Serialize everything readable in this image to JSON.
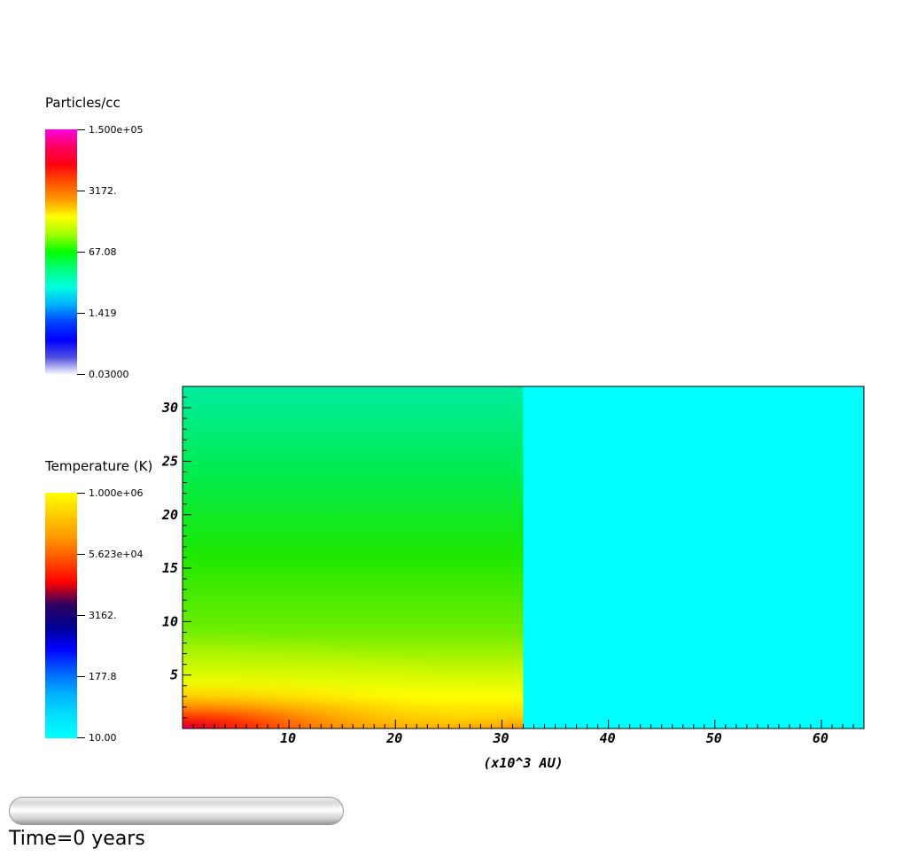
{
  "chart_data": {
    "type": "heatmap",
    "xlabel": "(x10^3 AU)",
    "ylabel": "",
    "xlim": [
      0,
      64
    ],
    "ylim": [
      0,
      32
    ],
    "x_ticks": [
      "10",
      "20",
      "30",
      "40",
      "50",
      "60"
    ],
    "y_ticks": [
      "5",
      "10",
      "15",
      "20",
      "25",
      "30"
    ],
    "regions": [
      {
        "x_range": [
          0,
          32
        ],
        "y_range": [
          0,
          32
        ],
        "description_colors": [
          "#00e890",
          "#00e800",
          "#ffff00",
          "#ff9000",
          "#e80020",
          "#ff00ff"
        ]
      },
      {
        "x_range": [
          32,
          64
        ],
        "y_range": [
          0,
          32
        ],
        "color": "#00ffff"
      }
    ]
  },
  "colorbars": {
    "density": {
      "title": "Particles/cc",
      "ticks": [
        "1.500e+05",
        "3172.",
        "67.08",
        "1.419",
        "0.03000"
      ],
      "colors": [
        "#ff00e0",
        "#ff0060",
        "#ff0010",
        "#ff5000",
        "#ff9900",
        "#ffff00",
        "#a0ff00",
        "#00ff00",
        "#00ff80",
        "#00ffdd",
        "#00b0ff",
        "#0040ff",
        "#0000ff",
        "#5050e0",
        "#ffffff"
      ]
    },
    "temperature": {
      "title": "Temperature (K)",
      "ticks": [
        "1.000e+06",
        "5.623e+04",
        "3162.",
        "177.8",
        "10.00"
      ],
      "colors": [
        "#ffff00",
        "#ffcc00",
        "#ff9900",
        "#ff5000",
        "#ff0000",
        "#300060",
        "#000090",
        "#0000ff",
        "#0060ff",
        "#00b0ff",
        "#00e0ff",
        "#00ffff"
      ]
    }
  },
  "progress": {
    "fraction": 0.0
  },
  "time_text": "Time=0 years"
}
